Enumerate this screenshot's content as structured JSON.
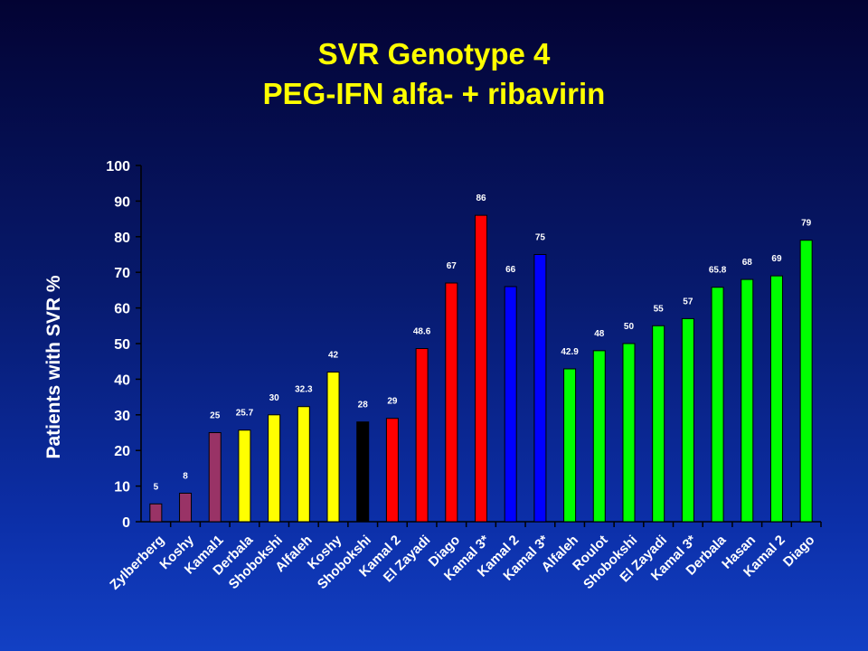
{
  "chart_data": {
    "type": "bar",
    "title": "SVR Genotype 4",
    "subtitle": "PEG-IFN alfa- + ribavirin",
    "xlabel": "",
    "ylabel": "Patients with SVR %",
    "ylim": [
      0,
      100
    ],
    "yticks": [
      0,
      10,
      20,
      30,
      40,
      50,
      60,
      70,
      80,
      90,
      100
    ],
    "grid": false,
    "legend": "none",
    "categories": [
      "Zylberberg",
      "Koshy",
      "Kamal1",
      "Derbala",
      "Shobokshi",
      "Alfaleh",
      "Koshy",
      "Shobokshi",
      "Kamal 2",
      "El Zayadi",
      "Diago",
      "Kamal 3*",
      "Kamal 2",
      "Kamal 3*",
      "Alfaleh",
      "Roulot",
      "Shobokshi",
      "El Zayadi",
      "Kamal 3*",
      "Derbala",
      "Hasan",
      "Kamal 2",
      "Diago"
    ],
    "values": [
      5,
      8,
      25,
      25.7,
      30,
      32.3,
      42,
      28,
      29,
      48.6,
      67,
      86,
      66,
      75,
      42.9,
      48,
      50,
      55,
      57,
      65.8,
      68,
      69,
      79
    ],
    "value_labels": [
      "5",
      "8",
      "25",
      "25.7",
      "30",
      "32.3",
      "42",
      "28",
      "29",
      "48.6",
      "67",
      "86",
      "66",
      "75",
      "42.9",
      "48",
      "50",
      "55",
      "57",
      "65.8",
      "68",
      "69",
      "79"
    ],
    "bar_colors": [
      "#993366",
      "#993366",
      "#993366",
      "#ffff00",
      "#ffff00",
      "#ffff00",
      "#ffff00",
      "#000000",
      "#ff0000",
      "#ff0000",
      "#ff0000",
      "#ff0000",
      "#0000ff",
      "#0000ff",
      "#00ff00",
      "#00ff00",
      "#00ff00",
      "#00ff00",
      "#00ff00",
      "#00ff00",
      "#00ff00",
      "#00ff00",
      "#00ff00"
    ]
  }
}
